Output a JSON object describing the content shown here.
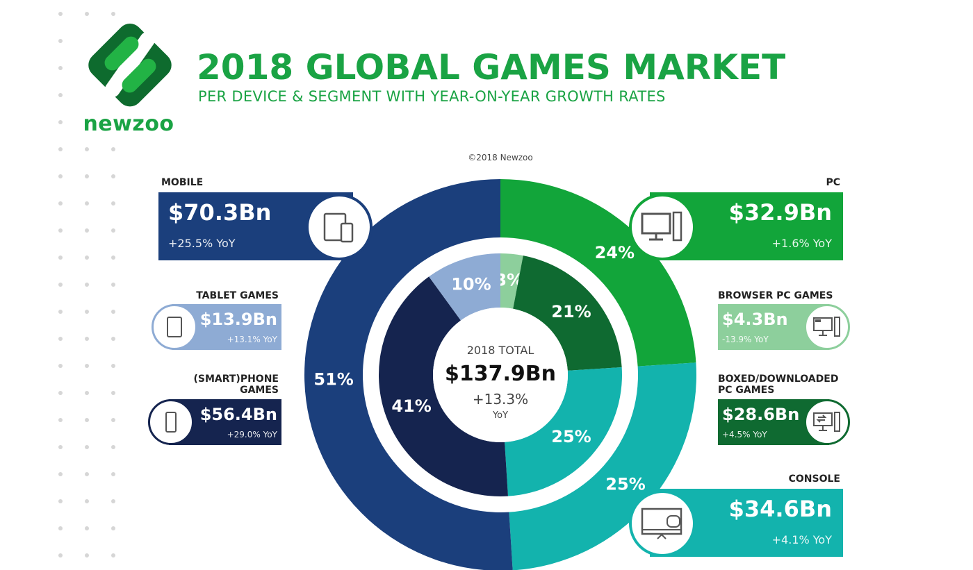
{
  "header": {
    "brand": "newzoo",
    "title": "2018 GLOBAL GAMES MARKET",
    "subtitle": "PER DEVICE & SEGMENT WITH YEAR-ON-YEAR GROWTH RATES",
    "copyright": "©2018 Newzoo"
  },
  "colors": {
    "brand_green": "#1aa344",
    "mobile": "#1b3f7c",
    "tablet": "#8eabd4",
    "smartphone": "#15244f",
    "pc": "#12a53a",
    "browser_pc": "#8dcf9c",
    "boxed_pc": "#0f6a31",
    "console": "#13b3ad"
  },
  "cards": {
    "mobile": {
      "label": "MOBILE",
      "value": "$70.3Bn",
      "yoy": "+25.5% YoY",
      "icon": "tablet-phone-icon"
    },
    "tablet": {
      "label": "TABLET GAMES",
      "value": "$13.9Bn",
      "yoy": "+13.1% YoY",
      "icon": "tablet-icon"
    },
    "smartphone": {
      "label1": "(SMART)PHONE",
      "label2": "GAMES",
      "value": "$56.4Bn",
      "yoy": "+29.0% YoY",
      "icon": "phone-icon"
    },
    "pc": {
      "label": "PC",
      "value": "$32.9Bn",
      "yoy": "+1.6% YoY",
      "icon": "desktop-pc-icon"
    },
    "browser_pc": {
      "label": "BROWSER PC GAMES",
      "value": "$4.3Bn",
      "yoy": "-13.9% YoY",
      "icon": "browser-pc-icon"
    },
    "boxed_pc": {
      "label1": "BOXED/DOWNLOADED",
      "label2": "PC GAMES",
      "value": "$28.6Bn",
      "yoy": "+4.5% YoY",
      "icon": "download-pc-icon"
    },
    "console": {
      "label": "CONSOLE",
      "value": "$34.6Bn",
      "yoy": "+4.1% YoY",
      "icon": "tv-gamepad-icon"
    }
  },
  "chart_data": {
    "type": "pie",
    "title": "2018 GLOBAL GAMES MARKET",
    "center": {
      "line1": "2018 TOTAL",
      "line2": "$137.9Bn",
      "line3": "+13.3%",
      "line4": "YoY"
    },
    "outer_ring": [
      {
        "name": "PC",
        "percent": 24,
        "value_bn": 32.9,
        "label": "24%",
        "color": "#12a53a"
      },
      {
        "name": "CONSOLE",
        "percent": 25,
        "value_bn": 34.6,
        "label": "25%",
        "color": "#13b3ad"
      },
      {
        "name": "MOBILE",
        "percent": 51,
        "value_bn": 70.3,
        "label": "51%",
        "color": "#1b3f7c"
      }
    ],
    "inner_ring": [
      {
        "name": "BROWSER PC GAMES",
        "percent": 3,
        "value_bn": 4.3,
        "label": "3%",
        "color": "#8dcf9c"
      },
      {
        "name": "BOXED/DOWNLOADED PC GAMES",
        "percent": 21,
        "value_bn": 28.6,
        "label": "21%",
        "color": "#0f6a31"
      },
      {
        "name": "CONSOLE",
        "percent": 25,
        "value_bn": 34.6,
        "label": "25%",
        "color": "#13b3ad"
      },
      {
        "name": "(SMART)PHONE GAMES",
        "percent": 41,
        "value_bn": 56.4,
        "label": "41%",
        "color": "#15244f"
      },
      {
        "name": "TABLET GAMES",
        "percent": 10,
        "value_bn": 13.9,
        "label": "10%",
        "color": "#8eabd4"
      }
    ]
  }
}
